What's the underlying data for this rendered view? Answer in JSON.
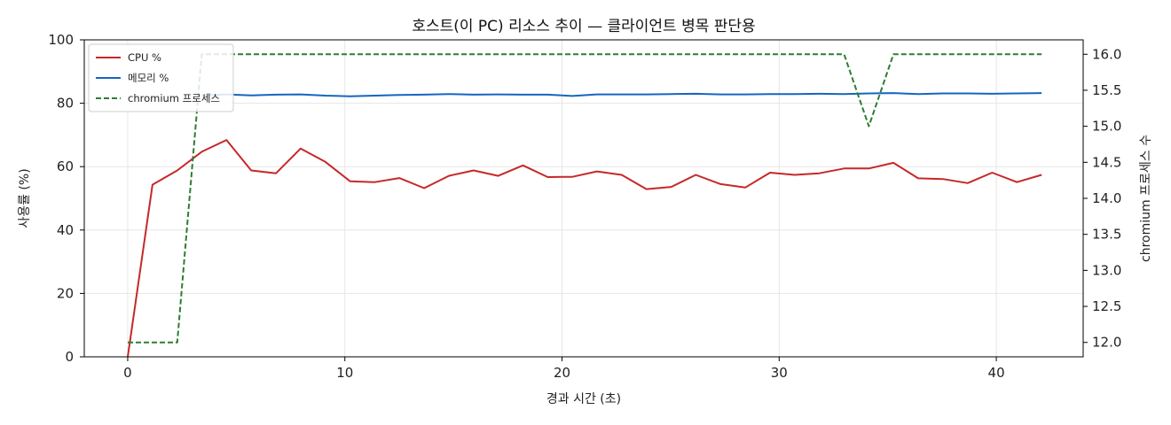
{
  "chart_data": {
    "type": "line",
    "title": "호스트(이 PC) 리소스 추이 — 클라이언트 병목 판단용",
    "xlabel": "경과 시간 (초)",
    "ylabel": "사용률 (%)",
    "ylabel_right": "chromium 프로세스 수",
    "xlim": [
      -2.0,
      44.0
    ],
    "ylim": [
      0,
      100
    ],
    "ylim_right": [
      11.8,
      16.2
    ],
    "xticks": [
      0,
      10,
      20,
      30,
      40
    ],
    "yticks": [
      0,
      20,
      40,
      60,
      80,
      100
    ],
    "yticks_right": [
      12.0,
      12.5,
      13.0,
      13.5,
      14.0,
      14.5,
      15.0,
      15.5,
      16.0
    ],
    "yticks_right_labels": [
      "12.0",
      "12.5",
      "13.0",
      "13.5",
      "14.0",
      "14.5",
      "15.0",
      "15.5",
      "16.0"
    ],
    "grid": true,
    "legend_position": "top-left",
    "x": [
      0,
      1.14,
      2.28,
      3.41,
      4.55,
      5.69,
      6.83,
      7.96,
      9.1,
      10.24,
      11.38,
      12.51,
      13.65,
      14.79,
      15.93,
      17.06,
      18.2,
      19.34,
      20.48,
      21.61,
      22.75,
      23.89,
      25.03,
      26.16,
      27.3,
      28.44,
      29.58,
      30.71,
      31.85,
      32.99,
      34.13,
      35.26,
      36.4,
      37.54,
      38.68,
      39.81,
      40.95,
      42.09
    ],
    "series": [
      {
        "name": "CPU %",
        "axis": "left",
        "color": "#c62828",
        "style": "solid",
        "values": [
          0,
          54.3,
          58.8,
          64.7,
          68.4,
          58.8,
          57.9,
          65.7,
          61.5,
          55.4,
          55.1,
          56.4,
          53.2,
          57.1,
          58.8,
          57.1,
          60.4,
          56.7,
          56.8,
          58.5,
          57.4,
          52.9,
          53.6,
          57.4,
          54.5,
          53.4,
          58.1,
          57.4,
          57.9,
          59.4,
          59.4,
          61.2,
          56.3,
          56.1,
          54.8,
          58.1,
          55.1,
          57.4
        ]
      },
      {
        "name": "메모리 %",
        "axis": "left",
        "color": "#1565c0",
        "style": "solid",
        "values": [
          null,
          null,
          null,
          82.5,
          82.8,
          82.5,
          82.7,
          82.8,
          82.4,
          82.2,
          82.4,
          82.6,
          82.7,
          82.9,
          82.7,
          82.8,
          82.7,
          82.7,
          82.3,
          82.8,
          82.8,
          82.8,
          82.9,
          83.0,
          82.8,
          82.8,
          82.9,
          82.9,
          83.0,
          82.9,
          83.1,
          83.2,
          82.9,
          83.1,
          83.1,
          83.0,
          83.1,
          83.2
        ]
      },
      {
        "name": "chromium 프로세스",
        "axis": "right",
        "color": "#2e7d32",
        "style": "dashed",
        "values": [
          12,
          12,
          12,
          16,
          16,
          16,
          16,
          16,
          16,
          16,
          16,
          16,
          16,
          16,
          16,
          16,
          16,
          16,
          16,
          16,
          16,
          16,
          16,
          16,
          16,
          16,
          16,
          16,
          16,
          16,
          15,
          16,
          16,
          16,
          16,
          16,
          16,
          16
        ]
      }
    ]
  }
}
